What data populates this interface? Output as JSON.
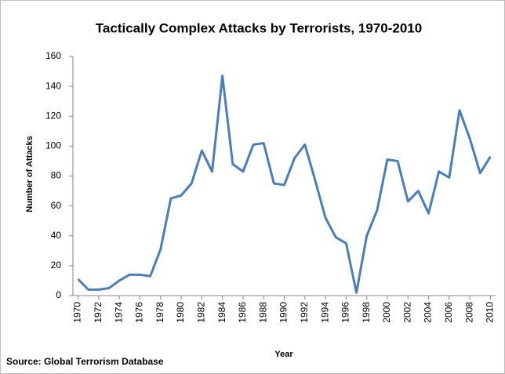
{
  "chart_data": {
    "type": "line",
    "title": "Tactically Complex Attacks by Terrorists, 1970-2010",
    "x_label": "Year",
    "y_label": "Number of Attacks",
    "annotation": "Source: Global Terrorism Database",
    "x": [
      1970,
      1971,
      1972,
      1973,
      1974,
      1975,
      1976,
      1977,
      1978,
      1979,
      1980,
      1981,
      1982,
      1983,
      1984,
      1985,
      1986,
      1987,
      1988,
      1989,
      1990,
      1991,
      1992,
      1993,
      1994,
      1995,
      1996,
      1997,
      1998,
      1999,
      2000,
      2001,
      2002,
      2003,
      2004,
      2005,
      2006,
      2007,
      2008,
      2009,
      2010
    ],
    "series": [
      {
        "name": "Attacks",
        "color": "#4a7ebb",
        "values": [
          11,
          4,
          4,
          5,
          10,
          14,
          14,
          13,
          31,
          65,
          67,
          75,
          97,
          83,
          147,
          88,
          83,
          101,
          102,
          75,
          74,
          92,
          101,
          77,
          52,
          39,
          35,
          2,
          40,
          57,
          91,
          90,
          63,
          70,
          55,
          83,
          79,
          124,
          105,
          82,
          93
        ]
      }
    ],
    "xlim": [
      1969.5,
      2010.5
    ],
    "xticks": [
      1970,
      1972,
      1974,
      1976,
      1978,
      1980,
      1982,
      1984,
      1986,
      1988,
      1990,
      1992,
      1994,
      1996,
      1998,
      2000,
      2002,
      2004,
      2006,
      2008,
      2010
    ],
    "ylim": [
      0,
      160
    ],
    "yticks": [
      0,
      20,
      40,
      60,
      80,
      100,
      120,
      140,
      160
    ],
    "grid": false
  }
}
